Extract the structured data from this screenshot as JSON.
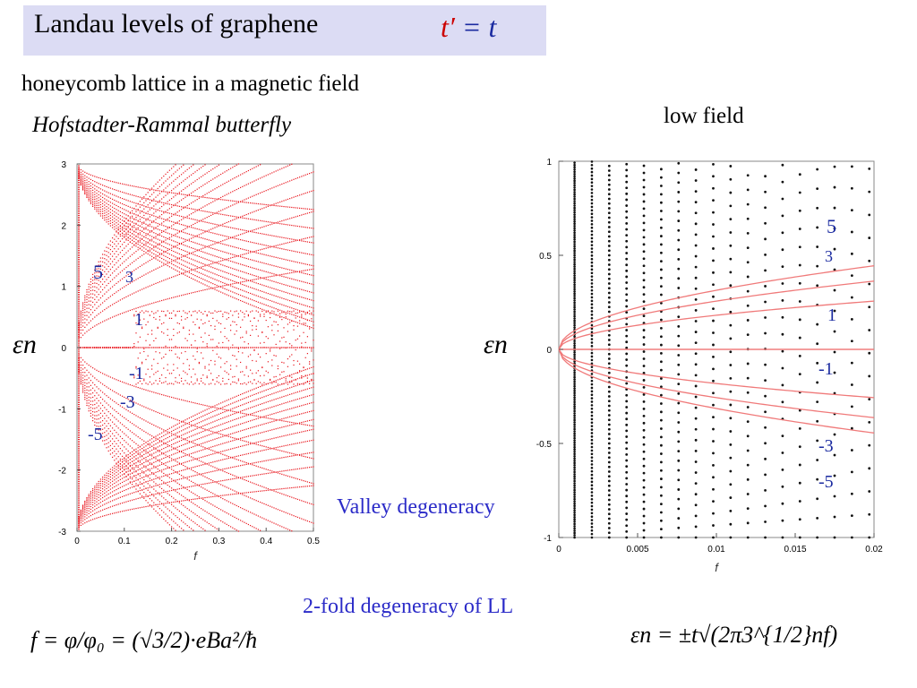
{
  "header": {
    "title": "Landau levels of graphene",
    "math_t_prime": "t′",
    "math_equals": " = ",
    "math_t": "t"
  },
  "subtitle": "honeycomb lattice in a magnetic field",
  "subtitle_italic": "Hofstadter-Rammal butterfly",
  "low_field_label": "low field",
  "epsilon_label": "εn",
  "notes": {
    "valley": "Valley degeneracy",
    "ll": "2-fold degeneracy of LL"
  },
  "formulas": {
    "f_def": "f = φ/φ₀ = (√3/2)·eBa²/ħ",
    "eps_def": "εn = ±t√(2π3^{1/2}nf)"
  },
  "colors": {
    "butterfly": "#e8141c",
    "fit_curves": "#f07a7a",
    "labels": "#1a2aa0",
    "title_bg": "#dcdcf4"
  },
  "chart_data": [
    {
      "type": "scatter",
      "x": [],
      "y": [],
      "xlabel": "f",
      "ylabel": "εn",
      "xlim": [
        0,
        0.5
      ],
      "ylim": [
        -3,
        3
      ],
      "xticks": [
        "0",
        "0.1",
        "0.2",
        "0.3",
        "0.4",
        "0.5"
      ],
      "yticks": [
        "3",
        "2",
        "1",
        "0",
        "-1",
        "-2",
        "-3"
      ],
      "level_labels": [
        "5",
        "3",
        "1",
        "-1",
        "-3",
        "-5"
      ]
    },
    {
      "type": "scatter",
      "xlabel": "f",
      "ylabel": "εn",
      "xlim": [
        0,
        0.02
      ],
      "ylim": [
        -1,
        1
      ],
      "xticks": [
        "0",
        "0.005",
        "0.01",
        "0.015",
        "0.02"
      ],
      "yticks": [
        "1",
        "0.5",
        "0",
        "-0.5",
        "-1"
      ],
      "curve_n": [
        0,
        1,
        2,
        3
      ],
      "curve_coefficient": 1,
      "level_labels": [
        "5",
        "3",
        "1",
        "-1",
        "-3",
        "-5"
      ]
    }
  ]
}
